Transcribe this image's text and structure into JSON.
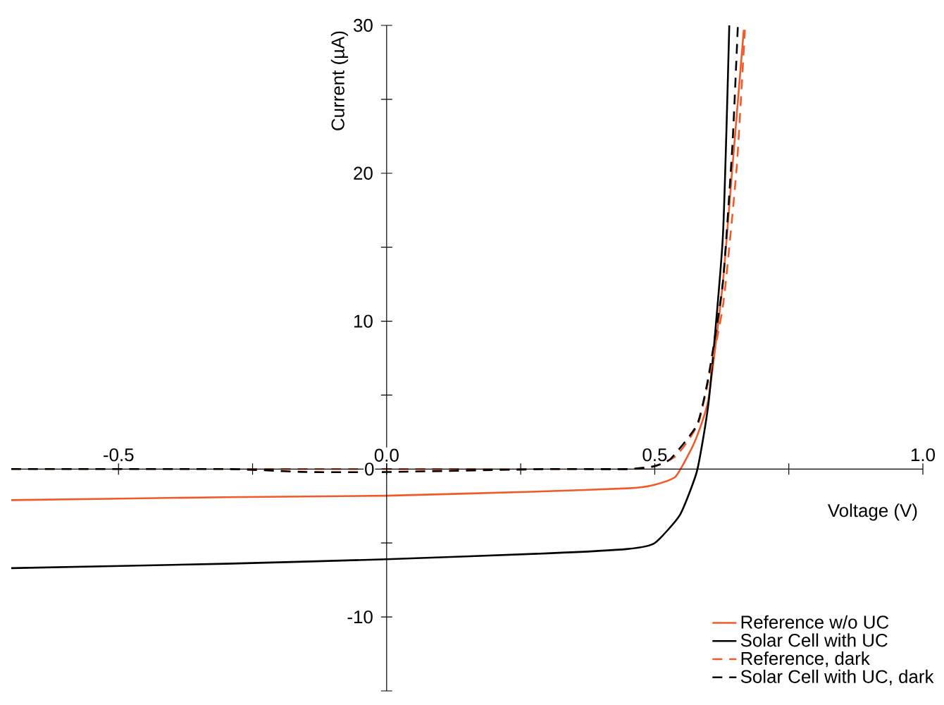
{
  "chart_data": {
    "type": "line",
    "xlabel": "Voltage (V)",
    "ylabel": "Current (µA)",
    "xlim": [
      -0.7,
      1.0
    ],
    "ylim": [
      -15,
      30
    ],
    "xticks": [
      {
        "value": -0.5,
        "label": "-0.5"
      },
      {
        "value": -0.25,
        "label": null
      },
      {
        "value": 0,
        "label": "0.0"
      },
      {
        "value": 0.25,
        "label": null
      },
      {
        "value": 0.5,
        "label": "0.5"
      },
      {
        "value": 0.75,
        "label": null
      },
      {
        "value": 1.0,
        "label": "1.0"
      }
    ],
    "yticks": [
      {
        "value": -15,
        "label": null
      },
      -10,
      {
        "value": -5,
        "label": null
      },
      0,
      {
        "value": 5,
        "label": null
      },
      10,
      {
        "value": 15,
        "label": null
      },
      20,
      {
        "value": 25,
        "label": null
      },
      30
    ],
    "legend": "bottom right",
    "grid": false,
    "series": [
      {
        "name": "Reference w/o UC",
        "color": "#f05a28",
        "line_style": "solid",
        "x": [
          -0.7,
          -0.3,
          0,
          0.3,
          0.45,
          0.495,
          0.539,
          0.574,
          0.6,
          0.627,
          0.645,
          0.666
        ],
        "values": [
          -2.1,
          -1.9,
          -1.8,
          -1.5,
          -1.3,
          -1.1,
          -0.5,
          1.8,
          4.7,
          12.6,
          20.5,
          29.7
        ]
      },
      {
        "name": "Solar Cell with UC",
        "color": "#000000",
        "line_style": "solid",
        "x": [
          -0.7,
          -0.3,
          0,
          0.3,
          0.45,
          0.5,
          0.547,
          0.579,
          0.601,
          0.627,
          0.639
        ],
        "values": [
          -6.7,
          -6.4,
          -6.1,
          -5.7,
          -5.4,
          -5.0,
          -3.1,
          -0.1,
          4.7,
          15.7,
          30
        ]
      },
      {
        "name": "Reference, dark",
        "color": "#f05a28",
        "line_style": "dashed",
        "x": [
          -0.7,
          0,
          0.45,
          0.5,
          0.54,
          0.583,
          0.627,
          0.653,
          0.668
        ],
        "values": [
          0,
          0,
          0,
          0.2,
          0.9,
          3.3,
          11,
          20.5,
          29.7
        ]
      },
      {
        "name": "Solar Cell with UC, dark",
        "color": "#000000",
        "line_style": "dashed",
        "x": [
          -0.7,
          -0.3,
          -0.15,
          0,
          0.3,
          0.45,
          0.5,
          0.53,
          0.579,
          0.6,
          0.627,
          0.645,
          0.655
        ],
        "values": [
          0,
          0,
          -0.2,
          -0.2,
          0,
          0,
          0.2,
          0.7,
          3.0,
          6.2,
          12.6,
          22,
          30
        ]
      }
    ]
  }
}
